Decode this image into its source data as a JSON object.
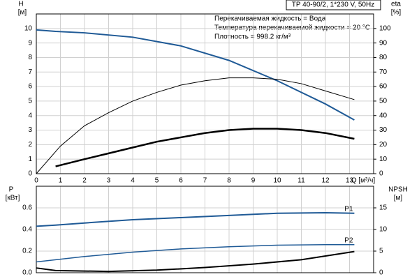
{
  "chart_data": [
    {
      "type": "line",
      "header": "TP 40-90/2, 1*230 V, 50Hz",
      "annotations": [
        "Перекачиваемая жидкость = Вода",
        "Температура перекачиваемой жидкости = 20 °C",
        "Плотность = 998.2 кг/м³"
      ],
      "xlabel": "Q [м³/ч]",
      "ylabel": "H",
      "yunit": "[м]",
      "y2label": "eta",
      "y2unit": "[%]",
      "xlim": [
        0,
        14
      ],
      "xticks": [
        0,
        1,
        2,
        3,
        4,
        5,
        6,
        7,
        8,
        9,
        10,
        11,
        12,
        13
      ],
      "ylim": [
        0,
        11
      ],
      "yticks": [
        0,
        1,
        2,
        3,
        4,
        5,
        6,
        7,
        8,
        9,
        10
      ],
      "y2lim": [
        0,
        110
      ],
      "y2ticks": [
        0,
        10,
        20,
        30,
        40,
        50,
        60,
        70,
        80,
        90,
        100
      ],
      "grid": true,
      "series": [
        {
          "color": "#1f5a96",
          "width": 2,
          "x": [
            0,
            0.8,
            2,
            4,
            6,
            8,
            10,
            12,
            13.2
          ],
          "values": [
            9.9,
            9.8,
            9.7,
            9.4,
            8.8,
            7.8,
            6.4,
            4.8,
            3.7
          ]
        },
        {
          "color": "#000000",
          "width": 1,
          "axis": "y2",
          "x": [
            0,
            1,
            2,
            3,
            4,
            5,
            6,
            7,
            8,
            9,
            10,
            11,
            12,
            13.2
          ],
          "values": [
            0,
            19,
            33,
            42,
            50,
            56,
            61,
            64,
            66,
            66,
            65,
            62,
            57,
            51
          ]
        },
        {
          "color": "#000000",
          "width": 2.5,
          "axis": "y2",
          "x": [
            0.8,
            2,
            3,
            4,
            5,
            6,
            7,
            8,
            9,
            10,
            11,
            12,
            13.2
          ],
          "values": [
            5,
            10,
            14,
            18,
            22,
            25,
            28,
            30,
            31,
            31,
            30,
            28,
            24
          ]
        }
      ]
    },
    {
      "type": "line",
      "ylabel": "P",
      "yunit": "[кВт]",
      "y2label": "NPSH",
      "y2unit": "[м]",
      "xlim": [
        0,
        14
      ],
      "ylim": [
        0,
        0.8
      ],
      "yticks": [
        {
          "value": 0,
          "label": "0.0"
        },
        0.2,
        0.4,
        0.6
      ],
      "y2lim": [
        0,
        20
      ],
      "y2ticks": [
        0,
        5,
        10,
        15
      ],
      "grid": true,
      "series": [
        {
          "name": "P1",
          "color": "#1f5a96",
          "width": 2,
          "x": [
            0,
            0.8,
            2,
            4,
            6,
            8,
            10,
            12,
            13.2
          ],
          "values": [
            0.43,
            0.44,
            0.46,
            0.49,
            0.51,
            0.53,
            0.55,
            0.555,
            0.55
          ]
        },
        {
          "name": "P2",
          "color": "#1f5a96",
          "width": 1.5,
          "x": [
            0,
            2,
            4,
            6,
            8,
            10,
            12,
            13.2
          ],
          "values": [
            0.1,
            0.15,
            0.19,
            0.22,
            0.24,
            0.255,
            0.26,
            0.26
          ]
        },
        {
          "color": "#000000",
          "width": 2,
          "axis": "y2",
          "x": [
            0,
            0.8,
            3,
            5,
            7,
            9,
            11,
            13.2
          ],
          "values": [
            1.1,
            0.5,
            0.3,
            0.6,
            1.2,
            2.0,
            3.0,
            4.9
          ]
        }
      ]
    }
  ]
}
